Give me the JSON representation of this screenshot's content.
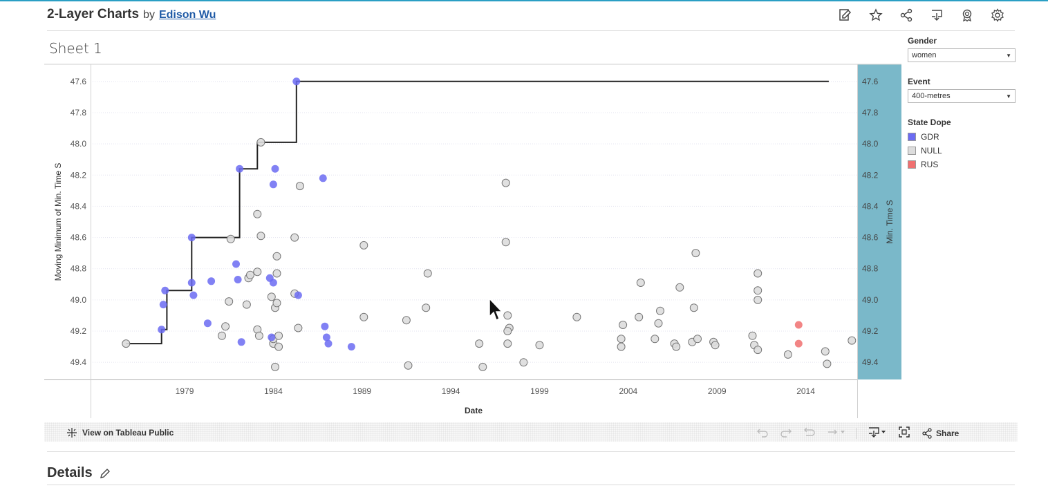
{
  "header": {
    "title": "2-Layer Charts",
    "by": "by",
    "author": "Edison Wu"
  },
  "toolbar_icons": [
    "edit-icon",
    "star-icon",
    "share-icon",
    "download-icon",
    "badge-icon",
    "gear-icon"
  ],
  "sheet_title": "Sheet 1",
  "filters": {
    "gender": {
      "label": "Gender",
      "value": "women"
    },
    "event": {
      "label": "Event",
      "value": "400-metres"
    }
  },
  "legend": {
    "title": "State Dope",
    "items": [
      {
        "label": "GDR",
        "color": "#6b6bf2"
      },
      {
        "label": "NULL",
        "color": "#dddddd"
      },
      {
        "label": "RUS",
        "color": "#f07070"
      }
    ]
  },
  "chart_data": {
    "type": "scatter",
    "xlabel": "Date",
    "ylabel": "Moving Minimum of Min. Time S",
    "ylabel_right": "Min. Time S",
    "x_ticks": [
      "1979",
      "1984",
      "1989",
      "1994",
      "1999",
      "2004",
      "2009",
      "2014"
    ],
    "y_ticks": [
      "47.6",
      "47.8",
      "48.0",
      "48.2",
      "48.4",
      "48.6",
      "48.8",
      "49.0",
      "49.2",
      "49.4"
    ],
    "xlim": [
      1974.2,
      2017.4
    ],
    "ylim": [
      47.49,
      49.51
    ],
    "grid": true,
    "step_line": [
      [
        1976.2,
        49.28
      ],
      [
        1978.2,
        49.28
      ],
      [
        1978.2,
        49.19
      ],
      [
        1978.5,
        49.19
      ],
      [
        1978.5,
        48.94
      ],
      [
        1979.9,
        48.94
      ],
      [
        1979.9,
        48.6
      ],
      [
        1982.6,
        48.6
      ],
      [
        1982.6,
        48.16
      ],
      [
        1983.6,
        48.16
      ],
      [
        1983.6,
        47.99
      ],
      [
        1985.8,
        47.99
      ],
      [
        1985.8,
        47.6
      ],
      [
        2015.8,
        47.6
      ]
    ],
    "series": [
      {
        "name": "GDR",
        "color": "#6b6bf2",
        "points": [
          [
            1978.2,
            49.19
          ],
          [
            1978.3,
            49.03
          ],
          [
            1978.4,
            48.94
          ],
          [
            1979.9,
            48.6
          ],
          [
            1979.9,
            48.89
          ],
          [
            1980.0,
            48.97
          ],
          [
            1980.8,
            49.15
          ],
          [
            1981.0,
            48.88
          ],
          [
            1982.4,
            48.77
          ],
          [
            1982.5,
            48.87
          ],
          [
            1982.6,
            48.16
          ],
          [
            1982.7,
            49.27
          ],
          [
            1984.3,
            48.86
          ],
          [
            1984.4,
            49.24
          ],
          [
            1984.5,
            48.89
          ],
          [
            1984.5,
            48.26
          ],
          [
            1984.6,
            48.16
          ],
          [
            1985.8,
            47.6
          ],
          [
            1985.9,
            48.97
          ],
          [
            1987.3,
            48.22
          ],
          [
            1987.4,
            49.17
          ],
          [
            1987.5,
            49.24
          ],
          [
            1987.6,
            49.28
          ],
          [
            1988.9,
            49.3
          ]
        ]
      },
      {
        "name": "NULL",
        "color": "#dddddd",
        "points": [
          [
            1976.2,
            49.28
          ],
          [
            1981.6,
            49.23
          ],
          [
            1981.8,
            49.17
          ],
          [
            1982.0,
            49.01
          ],
          [
            1982.1,
            48.61
          ],
          [
            1983.0,
            49.03
          ],
          [
            1983.1,
            48.86
          ],
          [
            1983.2,
            48.84
          ],
          [
            1983.6,
            48.82
          ],
          [
            1983.6,
            48.45
          ],
          [
            1983.6,
            49.19
          ],
          [
            1983.7,
            49.23
          ],
          [
            1983.8,
            48.59
          ],
          [
            1983.8,
            47.99
          ],
          [
            1984.4,
            48.98
          ],
          [
            1984.5,
            49.28
          ],
          [
            1984.5,
            49.25
          ],
          [
            1984.6,
            49.05
          ],
          [
            1984.6,
            49.43
          ],
          [
            1984.7,
            48.72
          ],
          [
            1984.7,
            48.83
          ],
          [
            1984.7,
            49.02
          ],
          [
            1984.8,
            49.23
          ],
          [
            1984.8,
            49.3
          ],
          [
            1985.7,
            48.96
          ],
          [
            1985.7,
            48.6
          ],
          [
            1985.9,
            49.18
          ],
          [
            1986.0,
            48.27
          ],
          [
            1989.6,
            48.65
          ],
          [
            1989.6,
            49.11
          ],
          [
            1992.0,
            49.13
          ],
          [
            1992.1,
            49.42
          ],
          [
            1993.1,
            49.05
          ],
          [
            1993.2,
            48.83
          ],
          [
            1996.1,
            49.28
          ],
          [
            1996.3,
            49.43
          ],
          [
            1997.6,
            48.25
          ],
          [
            1997.6,
            48.63
          ],
          [
            1997.7,
            49.1
          ],
          [
            1997.8,
            49.18
          ],
          [
            1997.7,
            49.28
          ],
          [
            1997.7,
            49.2
          ],
          [
            1998.6,
            49.4
          ],
          [
            1999.5,
            49.29
          ],
          [
            2001.6,
            49.11
          ],
          [
            2004.1,
            49.25
          ],
          [
            2004.1,
            49.3
          ],
          [
            2004.2,
            49.16
          ],
          [
            2005.1,
            49.11
          ],
          [
            2005.2,
            48.89
          ],
          [
            2006.0,
            49.25
          ],
          [
            2006.2,
            49.15
          ],
          [
            2006.3,
            49.07
          ],
          [
            2007.1,
            49.28
          ],
          [
            2007.2,
            49.3
          ],
          [
            2007.4,
            48.92
          ],
          [
            2008.1,
            49.27
          ],
          [
            2008.2,
            49.05
          ],
          [
            2008.3,
            48.7
          ],
          [
            2008.4,
            49.25
          ],
          [
            2009.3,
            49.27
          ],
          [
            2009.4,
            49.29
          ],
          [
            2011.5,
            49.23
          ],
          [
            2011.6,
            49.29
          ],
          [
            2011.8,
            48.94
          ],
          [
            2011.8,
            49.32
          ],
          [
            2011.8,
            48.83
          ],
          [
            2011.8,
            49.0
          ],
          [
            2013.5,
            49.35
          ],
          [
            2015.6,
            49.33
          ],
          [
            2015.7,
            49.41
          ],
          [
            2017.1,
            49.26
          ]
        ]
      },
      {
        "name": "RUS",
        "color": "#f07070",
        "points": [
          [
            2014.1,
            49.16
          ],
          [
            2014.1,
            49.28
          ]
        ]
      }
    ]
  },
  "bottombar": {
    "view_label": "View on Tableau Public",
    "share_label": "Share"
  },
  "details": {
    "title": "Details"
  }
}
